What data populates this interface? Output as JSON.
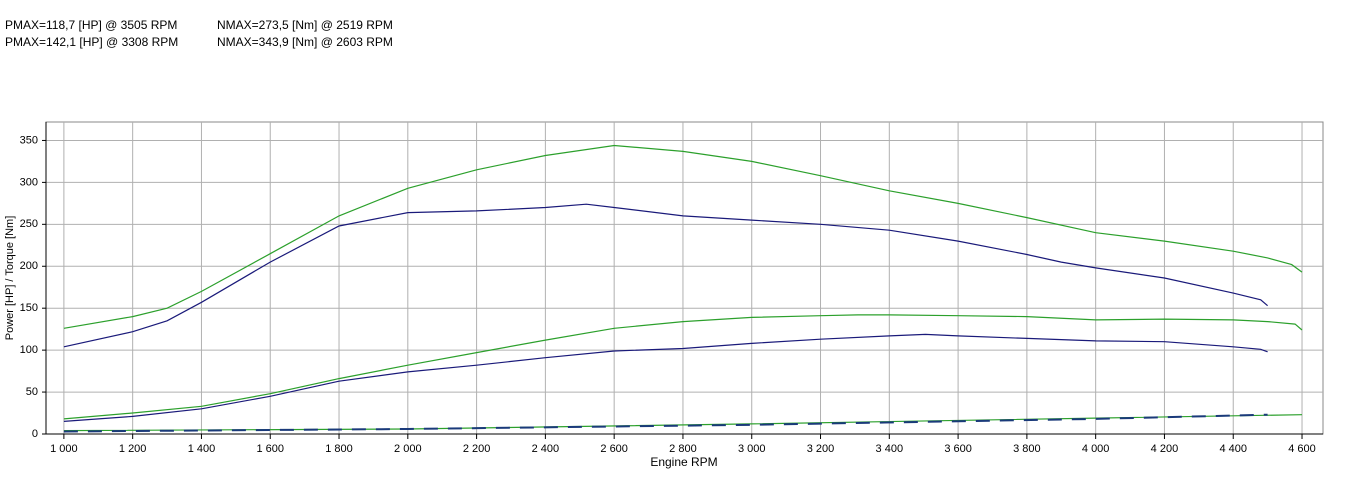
{
  "header": {
    "lines": [
      [
        "PMAX=118,7 [HP] @ 3505 RPM",
        "NMAX=273,5 [Nm] @ 2519 RPM"
      ],
      [
        "PMAX=142,1 [HP] @ 3308 RPM",
        "NMAX=343,9 [Nm] @ 2603 RPM"
      ]
    ]
  },
  "chart_data": {
    "type": "line",
    "x_label": "Engine RPM",
    "y_label": "Power [HP] / Torque [Nm]",
    "xlim": [
      948,
      4661
    ],
    "ylim": [
      0,
      372
    ],
    "grid": true,
    "xticks": [
      {
        "value": 1000,
        "label": "1 000"
      },
      {
        "value": 1200,
        "label": "1 200"
      },
      {
        "value": 1400,
        "label": "1 400"
      },
      {
        "value": 1600,
        "label": "1 600"
      },
      {
        "value": 1800,
        "label": "1 800"
      },
      {
        "value": 2000,
        "label": "2 000"
      },
      {
        "value": 2200,
        "label": "2 200"
      },
      {
        "value": 2400,
        "label": "2 400"
      },
      {
        "value": 2600,
        "label": "2 600"
      },
      {
        "value": 2800,
        "label": "2 800"
      },
      {
        "value": 3000,
        "label": "3 000"
      },
      {
        "value": 3200,
        "label": "3 200"
      },
      {
        "value": 3400,
        "label": "3 400"
      },
      {
        "value": 3600,
        "label": "3 600"
      },
      {
        "value": 3800,
        "label": "3 800"
      },
      {
        "value": 4000,
        "label": "4 000"
      },
      {
        "value": 4200,
        "label": "4 200"
      },
      {
        "value": 4400,
        "label": "4 400"
      },
      {
        "value": 4600,
        "label": "4 600"
      }
    ],
    "yticks": [
      0,
      50,
      100,
      150,
      200,
      250,
      300,
      350
    ],
    "series": [
      {
        "color": "#2ca02c",
        "x": [
          1000,
          1200,
          1300,
          1400,
          1600,
          1800,
          2000,
          2200,
          2400,
          2600,
          2800,
          3000,
          3200,
          3400,
          3600,
          3800,
          4000,
          4200,
          4400,
          4500,
          4570,
          4600
        ],
        "values": [
          126,
          140,
          150,
          170,
          215,
          260,
          293,
          315,
          332,
          344,
          337,
          325,
          308,
          290,
          275,
          258,
          240,
          230,
          218,
          210,
          202,
          193
        ]
      },
      {
        "color": "#1a1a7a",
        "x": [
          1000,
          1200,
          1300,
          1400,
          1600,
          1800,
          2000,
          2200,
          2400,
          2519,
          2600,
          2800,
          3000,
          3200,
          3400,
          3600,
          3800,
          3900,
          4000,
          4200,
          4400,
          4480,
          4500
        ],
        "values": [
          104,
          122,
          135,
          157,
          205,
          248,
          264,
          266,
          270,
          274,
          270,
          260,
          255,
          250,
          243,
          230,
          214,
          205,
          198,
          186,
          168,
          160,
          153
        ]
      },
      {
        "color": "#2ca02c",
        "x": [
          1000,
          1200,
          1400,
          1600,
          1800,
          2000,
          2200,
          2400,
          2600,
          2800,
          3000,
          3200,
          3308,
          3400,
          3600,
          3800,
          4000,
          4200,
          4400,
          4500,
          4580,
          4600
        ],
        "values": [
          18,
          25,
          33,
          48,
          66,
          82,
          97,
          112,
          126,
          134,
          139,
          141,
          142,
          142,
          141,
          140,
          136,
          137,
          136,
          134,
          131,
          124
        ]
      },
      {
        "color": "#1a1a7a",
        "x": [
          1000,
          1200,
          1400,
          1600,
          1800,
          2000,
          2200,
          2400,
          2600,
          2800,
          3000,
          3200,
          3400,
          3505,
          3600,
          3800,
          4000,
          4200,
          4400,
          4480,
          4500
        ],
        "values": [
          15,
          21,
          30,
          45,
          63,
          74,
          82,
          91,
          99,
          102,
          108,
          113,
          117,
          118.7,
          117,
          114,
          111,
          110,
          104,
          101,
          98
        ]
      },
      {
        "color": "#2ca02c",
        "x": [
          1000,
          2000,
          3000,
          4000,
          4600
        ],
        "values": [
          4,
          6,
          12,
          19,
          23
        ]
      },
      {
        "color": "#1a3a7a",
        "dashed": true,
        "x": [
          1000,
          2000,
          3000,
          4000,
          4500
        ],
        "values": [
          3,
          6,
          11,
          18,
          23
        ]
      }
    ]
  }
}
